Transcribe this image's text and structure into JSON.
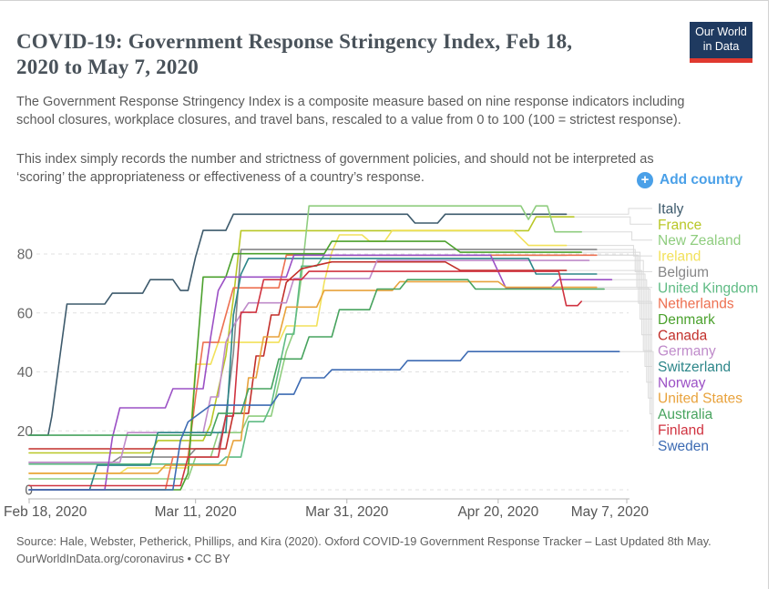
{
  "header": {
    "title": "COVID-19: Government Response Stringency Index, Feb 18, 2020 to May 7, 2020",
    "paragraph1": "The Government Response Stringency Index is a composite measure based on nine response indicators including school closures, workplace closures, and travel bans, rescaled to a value from 0 to 100 (100 = strictest response).",
    "paragraph2": "This index simply records the number and strictness of government policies, and should not be interpreted as ‘scoring’ the appropriateness or effectiveness of a country’s response.",
    "logo": {
      "line1": "Our World",
      "line2": "in Data"
    }
  },
  "controls": {
    "add_country_label": "Add country",
    "plus_icon": "+"
  },
  "chart_data": {
    "type": "line",
    "title": "COVID-19: Government Response Stringency Index, Feb 18, 2020 to May 7, 2020",
    "x_axis": {
      "tick_days": [
        0,
        22,
        42,
        62,
        79
      ],
      "tick_labels": [
        "Feb 18, 2020",
        "Mar 11, 2020",
        "Mar 31, 2020",
        "Apr 20, 2020",
        "May 7, 2020"
      ],
      "range_days": [
        0,
        79
      ]
    },
    "y_axis": {
      "ticks": [
        0,
        20,
        40,
        60,
        80
      ],
      "range": [
        0,
        100
      ],
      "gridlines": "dashed"
    },
    "legend_position": "right",
    "series": [
      {
        "name": "Italy",
        "color": "#3d5a6c",
        "points": [
          [
            0,
            18.5
          ],
          [
            2.5,
            18.5
          ],
          [
            3,
            25
          ],
          [
            4,
            44
          ],
          [
            5,
            63
          ],
          [
            10,
            63
          ],
          [
            11,
            66.7
          ],
          [
            15,
            66.7
          ],
          [
            16,
            71.3
          ],
          [
            19,
            71.3
          ],
          [
            20,
            67.6
          ],
          [
            21,
            67.6
          ],
          [
            22,
            79
          ],
          [
            23,
            88
          ],
          [
            26,
            88
          ],
          [
            27,
            93.5
          ],
          [
            50,
            93.5
          ],
          [
            51,
            90.5
          ],
          [
            54,
            90.5
          ],
          [
            55,
            93.5
          ],
          [
            71,
            93.5
          ]
        ]
      },
      {
        "name": "France",
        "color": "#b9c727",
        "points": [
          [
            0,
            12.5
          ],
          [
            16,
            12.5
          ],
          [
            17,
            16.7
          ],
          [
            23,
            16.7
          ],
          [
            24,
            22.2
          ],
          [
            25,
            34
          ],
          [
            26,
            45.4
          ],
          [
            27,
            65
          ],
          [
            28,
            87.9
          ],
          [
            66,
            87.9
          ],
          [
            67,
            92.6
          ],
          [
            72,
            92.6
          ]
        ]
      },
      {
        "name": "New Zealand",
        "color": "#8fcd7f",
        "points": [
          [
            0,
            3.7
          ],
          [
            21,
            3.7
          ],
          [
            22,
            11.1
          ],
          [
            24,
            11.1
          ],
          [
            25,
            19.4
          ],
          [
            28,
            19.4
          ],
          [
            29,
            25
          ],
          [
            32,
            25
          ],
          [
            33,
            36.1
          ],
          [
            34,
            47
          ],
          [
            35,
            53.7
          ],
          [
            36,
            72.2
          ],
          [
            37,
            96.3
          ],
          [
            64,
            96.3
          ],
          [
            65,
            96.3
          ],
          [
            66,
            91.7
          ],
          [
            67,
            96.3
          ],
          [
            68.5,
            96.3
          ],
          [
            69.5,
            87.5
          ],
          [
            73,
            87.5
          ]
        ]
      },
      {
        "name": "Ireland",
        "color": "#f2e15a",
        "points": [
          [
            0,
            5.6
          ],
          [
            12,
            5.6
          ],
          [
            13,
            7.4
          ],
          [
            21,
            7.4
          ],
          [
            22,
            42.6
          ],
          [
            24,
            42.6
          ],
          [
            25,
            50
          ],
          [
            33,
            50
          ],
          [
            34,
            55.6
          ],
          [
            38,
            55.6
          ],
          [
            39,
            70.4
          ],
          [
            40,
            80.6
          ],
          [
            41,
            86.5
          ],
          [
            44,
            86.5
          ],
          [
            45,
            84.3
          ],
          [
            47,
            84.3
          ],
          [
            48,
            88
          ],
          [
            64,
            88
          ],
          [
            66,
            82.9
          ],
          [
            71,
            82.9
          ]
        ]
      },
      {
        "name": "Belgium",
        "color": "#868687",
        "points": [
          [
            0,
            9.3
          ],
          [
            11,
            9.3
          ],
          [
            12,
            11.1
          ],
          [
            21,
            11.1
          ],
          [
            22,
            13.9
          ],
          [
            25,
            13.9
          ],
          [
            26,
            25
          ],
          [
            27,
            46.3
          ],
          [
            28,
            81.5
          ],
          [
            75,
            81.5
          ]
        ]
      },
      {
        "name": "United Kingdom",
        "color": "#5fbb84",
        "points": [
          [
            0,
            8.7
          ],
          [
            25,
            8.7
          ],
          [
            26,
            11.1
          ],
          [
            28,
            11.1
          ],
          [
            29,
            23.1
          ],
          [
            31,
            23.1
          ],
          [
            32,
            28.7
          ],
          [
            33,
            40.7
          ],
          [
            34,
            52.8
          ],
          [
            35,
            52.8
          ],
          [
            36,
            75.9
          ],
          [
            38,
            75.9
          ],
          [
            39,
            79.6
          ],
          [
            71,
            79.6
          ]
        ]
      },
      {
        "name": "Netherlands",
        "color": "#ed7051",
        "points": [
          [
            0,
            0
          ],
          [
            18,
            0
          ],
          [
            19,
            11.1
          ],
          [
            21,
            11.1
          ],
          [
            22,
            31.5
          ],
          [
            23,
            50
          ],
          [
            25,
            50
          ],
          [
            26,
            59.3
          ],
          [
            27,
            68.5
          ],
          [
            33,
            68.5
          ],
          [
            34,
            79.6
          ],
          [
            75,
            79.6
          ]
        ]
      },
      {
        "name": "Denmark",
        "color": "#4ba12d",
        "points": [
          [
            0,
            0
          ],
          [
            20,
            0
          ],
          [
            21,
            5.6
          ],
          [
            22,
            40.7
          ],
          [
            23,
            72.2
          ],
          [
            26,
            72.2
          ],
          [
            27,
            80.1
          ],
          [
            39,
            80.1
          ],
          [
            40,
            84.3
          ],
          [
            55,
            84.3
          ],
          [
            57,
            80.6
          ],
          [
            73,
            80.6
          ]
        ]
      },
      {
        "name": "Canada",
        "color": "#c22f2a",
        "points": [
          [
            0,
            13.9
          ],
          [
            26,
            13.9
          ],
          [
            27,
            25.9
          ],
          [
            29,
            25.9
          ],
          [
            30,
            45.4
          ],
          [
            31,
            45.4
          ],
          [
            32,
            59.3
          ],
          [
            33,
            59.3
          ],
          [
            34,
            70.4
          ],
          [
            36,
            75
          ],
          [
            40,
            77.3
          ],
          [
            55,
            77.3
          ],
          [
            57,
            74.4
          ],
          [
            71,
            74.4
          ]
        ]
      },
      {
        "name": "Germany",
        "color": "#bf8bca",
        "points": [
          [
            0,
            9.3
          ],
          [
            12,
            9.3
          ],
          [
            13,
            19.4
          ],
          [
            23,
            19.4
          ],
          [
            24,
            31.5
          ],
          [
            25,
            31.5
          ],
          [
            26,
            50
          ],
          [
            27,
            55.6
          ],
          [
            29,
            63.4
          ],
          [
            34,
            63.4
          ],
          [
            35,
            71.7
          ],
          [
            45,
            71.7
          ],
          [
            46,
            77.8
          ],
          [
            74,
            77.8
          ]
        ]
      },
      {
        "name": "Switzerland",
        "color": "#2c8689",
        "points": [
          [
            0,
            0
          ],
          [
            8,
            0
          ],
          [
            9,
            8.3
          ],
          [
            16,
            8.3
          ],
          [
            17,
            19.4
          ],
          [
            26,
            19.4
          ],
          [
            27,
            59.3
          ],
          [
            28,
            73.1
          ],
          [
            29,
            78.5
          ],
          [
            66,
            78.5
          ],
          [
            67,
            73.2
          ],
          [
            75,
            73.2
          ]
        ]
      },
      {
        "name": "Norway",
        "color": "#9b50c5",
        "points": [
          [
            0,
            0
          ],
          [
            10,
            0
          ],
          [
            11,
            17.6
          ],
          [
            12,
            27.8
          ],
          [
            18,
            27.8
          ],
          [
            19,
            34.3
          ],
          [
            23,
            34.3
          ],
          [
            24,
            51.9
          ],
          [
            25,
            67.6
          ],
          [
            26,
            72.2
          ],
          [
            34,
            72.2
          ],
          [
            35,
            79.6
          ],
          [
            61,
            79.6
          ],
          [
            63,
            68.5
          ],
          [
            69,
            68.5
          ],
          [
            70,
            71.3
          ],
          [
            77,
            71.3
          ]
        ]
      },
      {
        "name": "United States",
        "color": "#e8a23c",
        "points": [
          [
            0,
            5.6
          ],
          [
            17,
            5.6
          ],
          [
            18,
            8.3
          ],
          [
            26,
            8.3
          ],
          [
            27,
            16.7
          ],
          [
            28,
            16.7
          ],
          [
            29,
            38
          ],
          [
            30,
            38
          ],
          [
            31,
            51.9
          ],
          [
            33,
            51.9
          ],
          [
            34,
            62
          ],
          [
            38,
            62
          ],
          [
            39,
            67.6
          ],
          [
            48,
            67.6
          ],
          [
            49,
            70.6
          ],
          [
            62,
            70.6
          ],
          [
            63,
            68.7
          ],
          [
            75,
            68.7
          ]
        ]
      },
      {
        "name": "Australia",
        "color": "#47a35e",
        "points": [
          [
            0,
            18.5
          ],
          [
            24,
            18.5
          ],
          [
            25,
            25.9
          ],
          [
            28,
            25.9
          ],
          [
            29,
            34.3
          ],
          [
            32,
            34.3
          ],
          [
            33,
            44.4
          ],
          [
            36,
            44.4
          ],
          [
            37,
            51.9
          ],
          [
            40,
            51.9
          ],
          [
            41,
            61.1
          ],
          [
            45,
            61.1
          ],
          [
            46,
            68.1
          ],
          [
            49,
            68.1
          ],
          [
            50,
            71.3
          ],
          [
            58,
            71.3
          ],
          [
            59,
            68.1
          ],
          [
            76,
            68.1
          ]
        ]
      },
      {
        "name": "Finland",
        "color": "#d03340",
        "points": [
          [
            0,
            1.4
          ],
          [
            20,
            1.4
          ],
          [
            21,
            11.1
          ],
          [
            25,
            11.1
          ],
          [
            26,
            25
          ],
          [
            27,
            25
          ],
          [
            28,
            60.2
          ],
          [
            30,
            60.2
          ],
          [
            31,
            71.3
          ],
          [
            36,
            71.3
          ],
          [
            37,
            74.1
          ],
          [
            70,
            74.1
          ],
          [
            71,
            62.5
          ],
          [
            72.5,
            62.5
          ],
          [
            73,
            63.9
          ]
        ]
      },
      {
        "name": "Sweden",
        "color": "#3d6bb3",
        "points": [
          [
            0,
            0
          ],
          [
            19,
            0
          ],
          [
            20,
            16.7
          ],
          [
            21,
            23
          ],
          [
            24,
            28.7
          ],
          [
            32,
            28.7
          ],
          [
            33,
            32.4
          ],
          [
            35,
            32.4
          ],
          [
            36,
            38
          ],
          [
            39,
            38
          ],
          [
            40,
            40.7
          ],
          [
            49,
            40.7
          ],
          [
            50,
            43.8
          ],
          [
            57,
            43.8
          ],
          [
            58,
            46.9
          ],
          [
            78,
            46.9
          ]
        ]
      }
    ]
  },
  "footer": {
    "source": "Source: Hale, Webster, Petherick, Phillips, and Kira (2020). Oxford COVID-19 Government Response Tracker – Last Updated 8th May.",
    "link": "OurWorldInData.org/coronavirus • CC BY"
  }
}
